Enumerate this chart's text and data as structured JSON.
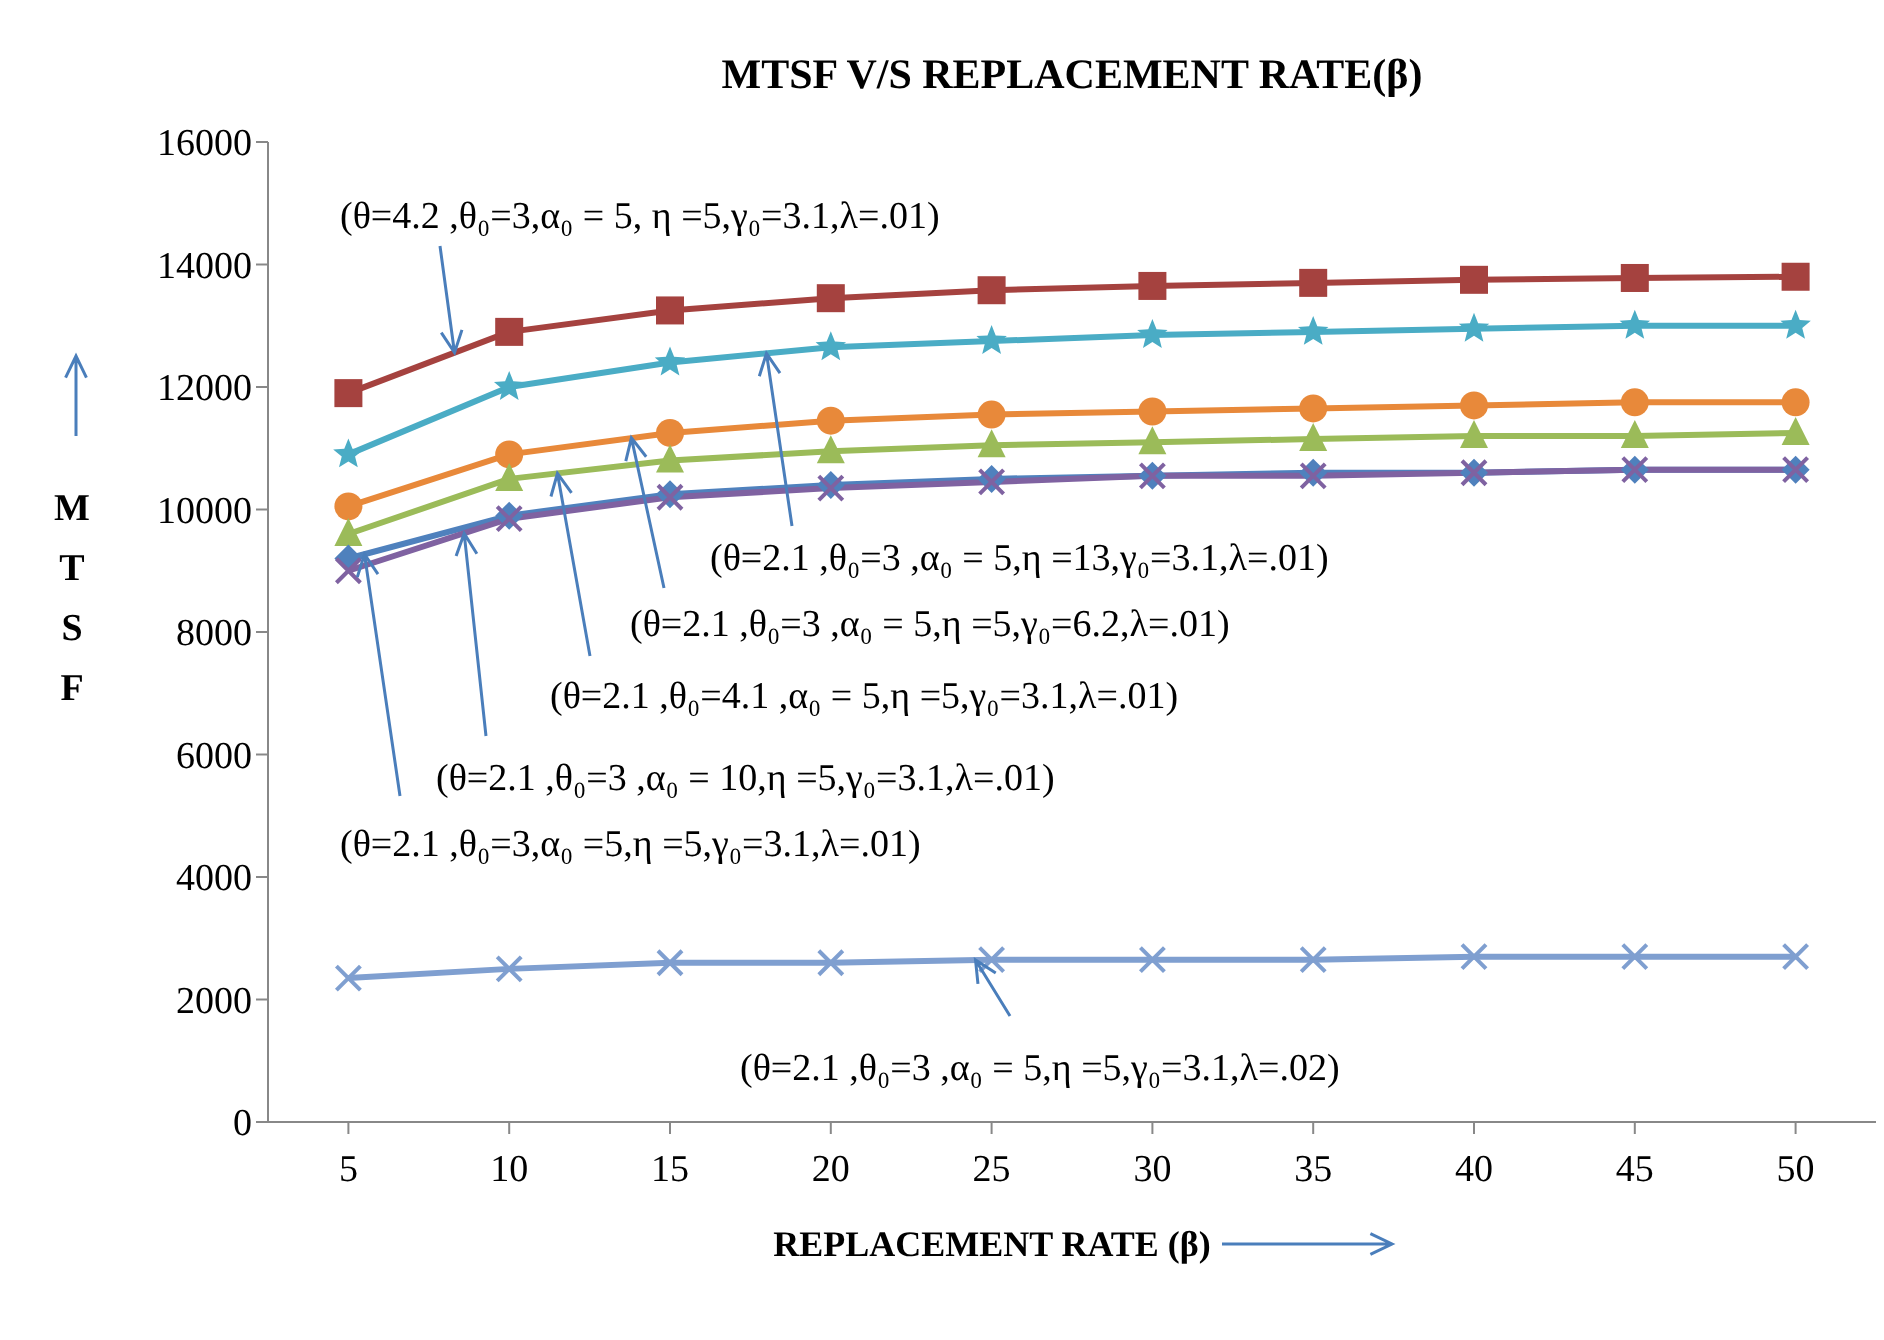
{
  "chart_data": {
    "type": "line",
    "title": "MTSF V/S REPLACEMENT RATE(β)",
    "xlabel": "REPLACEMENT RATE (β)",
    "ylabel": "MTSF",
    "x": [
      5,
      10,
      15,
      20,
      25,
      30,
      35,
      40,
      45,
      50
    ],
    "xlim": [
      2.5,
      52.5
    ],
    "xticks": [
      5,
      10,
      15,
      20,
      25,
      30,
      35,
      40,
      45,
      50
    ],
    "ylim": [
      0,
      16000
    ],
    "yticks": [
      0,
      2000,
      4000,
      6000,
      8000,
      10000,
      12000,
      14000,
      16000
    ],
    "grid": false,
    "legend": false,
    "line_style": "solid",
    "series": [
      {
        "color": "#a5423f",
        "marker": "square",
        "values": [
          11900,
          12900,
          13250,
          13450,
          13580,
          13650,
          13700,
          13750,
          13780,
          13800
        ]
      },
      {
        "color": "#4aacc5",
        "marker": "star",
        "values": [
          10900,
          12000,
          12400,
          12650,
          12750,
          12850,
          12900,
          12950,
          13000,
          13000
        ]
      },
      {
        "color": "#e8893a",
        "marker": "circle",
        "values": [
          10050,
          10900,
          11250,
          11450,
          11550,
          11600,
          11650,
          11700,
          11750,
          11750
        ]
      },
      {
        "color": "#9bbb59",
        "marker": "triangle",
        "values": [
          9600,
          10500,
          10800,
          10950,
          11050,
          11100,
          11150,
          11200,
          11200,
          11250
        ]
      },
      {
        "color": "#4f81bd",
        "marker": "diamond",
        "values": [
          9200,
          9900,
          10250,
          10400,
          10500,
          10550,
          10600,
          10600,
          10650,
          10650
        ]
      },
      {
        "color": "#7f62a1",
        "marker": "cross",
        "values": [
          9000,
          9850,
          10200,
          10350,
          10450,
          10550,
          10550,
          10600,
          10650,
          10650
        ]
      },
      {
        "color": "#7f9fd0",
        "marker": "cross",
        "values": [
          2350,
          2500,
          2600,
          2600,
          2650,
          2650,
          2650,
          2700,
          2700,
          2700
        ]
      }
    ],
    "annotations": [
      {
        "text": "(θ=4.2 ,θ₀=3,α₀ = 5, η =5,γ₀=3.1,λ=.01)",
        "x": 8.3,
        "y": 12560
      },
      {
        "text": "(θ=2.1 ,θ₀=3 ,α₀ = 5,η =13,γ₀=3.1,λ=.01)",
        "x": 18,
        "y": 12550
      },
      {
        "text": "(θ=2.1 ,θ₀=3 ,α₀ = 5,η =5,γ₀=6.2,λ=.01)",
        "x": 13.8,
        "y": 11170
      },
      {
        "text": "(θ=2.1 ,θ₀=4.1 ,α₀ = 5,η =5,γ₀=3.1,λ=.01)",
        "x": 11.5,
        "y": 10590
      },
      {
        "text": "(θ=2.1 ,θ₀=3 ,α₀ = 10,η =5,γ₀=3.1,λ=.01)",
        "x": 8.6,
        "y": 9610
      },
      {
        "text": "(θ=2.1 ,θ₀=3,α₀ =5,η =5,γ₀=3.1,λ=.01)",
        "x": 5.5,
        "y": 9270
      },
      {
        "text": "(θ=2.1 ,θ₀=3 ,α₀ = 5,η =5,γ₀=3.1,λ=.02)",
        "x": 24.5,
        "y": 2645
      }
    ]
  }
}
